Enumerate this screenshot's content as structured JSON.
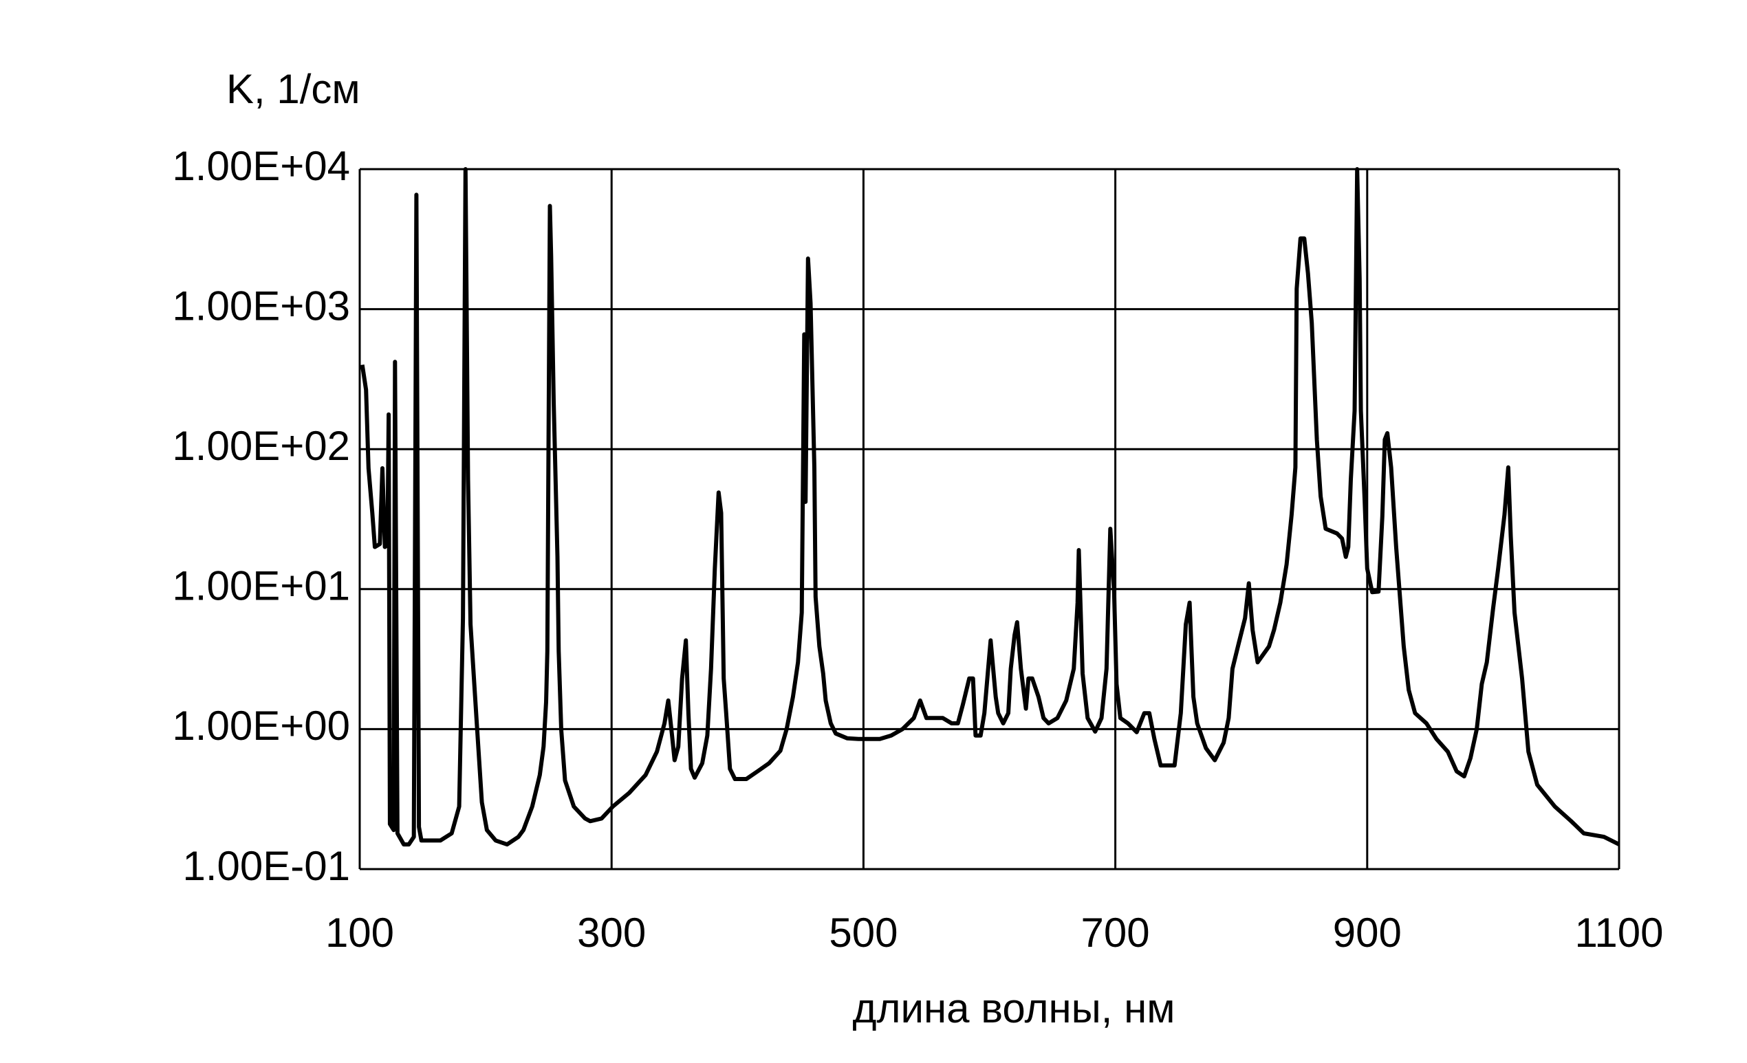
{
  "chart_data": {
    "type": "line",
    "log_y": true,
    "grid": true,
    "color": "#000000",
    "y_label": "K, 1/см",
    "x_label": "длина волны, нм",
    "xlim": [
      100,
      1100
    ],
    "xticks": [
      100,
      300,
      500,
      700,
      900,
      1100
    ],
    "ylim": [
      0.1,
      10000
    ],
    "yticks": [
      {
        "value": 0.1,
        "label": "1.00E-01"
      },
      {
        "value": 1,
        "label": "1.00E+00"
      },
      {
        "value": 10,
        "label": "1.00E+01"
      },
      {
        "value": 100,
        "label": "1.00E+02"
      },
      {
        "value": 1000,
        "label": "1.00E+03"
      },
      {
        "value": 10000,
        "label": "1.00E+04"
      }
    ],
    "x": [
      102,
      105,
      107,
      110,
      112,
      116,
      118,
      120,
      122,
      123,
      124,
      127,
      128,
      130,
      135,
      139,
      143,
      145,
      147,
      149,
      164,
      173,
      179,
      182,
      184,
      186,
      188,
      193,
      197,
      201,
      208,
      217,
      226,
      230,
      237,
      243,
      246,
      248,
      249,
      251,
      252,
      254,
      257,
      258,
      260,
      263,
      270,
      279,
      283,
      292,
      301,
      314,
      327,
      336,
      342,
      345,
      348,
      350,
      353,
      356,
      359,
      361,
      363,
      366,
      372,
      376,
      379,
      382,
      385,
      387,
      389,
      391,
      394,
      398,
      407,
      416,
      425,
      434,
      439,
      444,
      448,
      451,
      453,
      454,
      456,
      458,
      461,
      462,
      465,
      468,
      470,
      474,
      478,
      487,
      496,
      513,
      522,
      531,
      540,
      545,
      550,
      557,
      563,
      570,
      575,
      579,
      584,
      587,
      589,
      593,
      596,
      599,
      601,
      603,
      605,
      607,
      611,
      615,
      617,
      620,
      622,
      625,
      629,
      631,
      634,
      639,
      643,
      647,
      654,
      661,
      667,
      670,
      671,
      674,
      678,
      684,
      689,
      693,
      696,
      699,
      701,
      704,
      710,
      717,
      723,
      727,
      731,
      736,
      747,
      752,
      756,
      759,
      762,
      765,
      772,
      779,
      786,
      790,
      793,
      798,
      803,
      806,
      809,
      813,
      822,
      826,
      831,
      836,
      840,
      843,
      844,
      847,
      850,
      853,
      856,
      860,
      863,
      867,
      876,
      880,
      883,
      885,
      887,
      890,
      892,
      894,
      895,
      898,
      900,
      904,
      909,
      912,
      914,
      916,
      919,
      923,
      929,
      933,
      938,
      947,
      955,
      964,
      971,
      977,
      982,
      987,
      991,
      995,
      1000,
      1004,
      1009,
      1012,
      1014,
      1017,
      1023,
      1028,
      1035,
      1049,
      1062,
      1072,
      1088,
      1100
    ],
    "values": [
      400,
      265,
      73,
      35,
      20,
      21,
      73,
      20,
      21,
      177,
      0.21,
      0.19,
      420,
      0.18,
      0.15,
      0.15,
      0.17,
      6560,
      0.2,
      0.16,
      0.16,
      0.18,
      0.28,
      6.2,
      10000,
      61,
      5.6,
      1.08,
      0.3,
      0.19,
      0.16,
      0.15,
      0.17,
      0.19,
      0.28,
      0.47,
      0.75,
      1.56,
      3.6,
      5460,
      2400,
      220,
      17,
      3.6,
      0.99,
      0.43,
      0.28,
      0.23,
      0.22,
      0.23,
      0.28,
      0.35,
      0.47,
      0.69,
      1.1,
      1.6,
      0.9,
      0.6,
      0.75,
      2.3,
      4.3,
      1.3,
      0.52,
      0.45,
      0.57,
      0.9,
      2.7,
      14,
      49,
      35,
      2.3,
      1.3,
      0.52,
      0.44,
      0.44,
      0.5,
      0.57,
      0.7,
      1.0,
      1.7,
      3.0,
      6.8,
      660,
      42,
      2300,
      1100,
      74,
      8.8,
      3.9,
      2.5,
      1.6,
      1.1,
      0.93,
      0.86,
      0.85,
      0.85,
      0.9,
      1.0,
      1.2,
      1.6,
      1.2,
      1.2,
      1.2,
      1.1,
      1.1,
      1.5,
      2.3,
      2.3,
      0.9,
      0.9,
      1.3,
      2.7,
      4.3,
      2.7,
      1.7,
      1.3,
      1.1,
      1.3,
      2.7,
      4.7,
      5.8,
      2.7,
      1.4,
      2.3,
      2.3,
      1.7,
      1.2,
      1.1,
      1.2,
      1.6,
      2.7,
      8.0,
      19,
      2.5,
      1.2,
      0.96,
      1.2,
      2.7,
      27,
      9.6,
      2.1,
      1.2,
      1.1,
      0.95,
      1.3,
      1.3,
      0.85,
      0.55,
      0.55,
      1.3,
      5.6,
      8.0,
      1.7,
      1.1,
      0.73,
      0.6,
      0.8,
      1.2,
      2.7,
      4.1,
      6.2,
      11,
      5.1,
      3.0,
      3.9,
      5.1,
      8.0,
      15,
      34,
      74,
      1400,
      3200,
      3200,
      1800,
      800,
      117,
      46,
      27,
      25,
      23,
      17,
      20,
      61,
      188,
      10000,
      1650,
      188,
      43,
      14,
      9.5,
      9.6,
      33,
      117,
      130,
      74,
      20,
      3.9,
      1.9,
      1.3,
      1.1,
      0.85,
      0.69,
      0.5,
      0.46,
      0.62,
      1.0,
      2.1,
      3.0,
      7.3,
      14,
      34,
      74,
      24,
      6.8,
      2.3,
      0.69,
      0.4,
      0.28,
      0.22,
      0.18,
      0.17,
      0.15
    ]
  }
}
